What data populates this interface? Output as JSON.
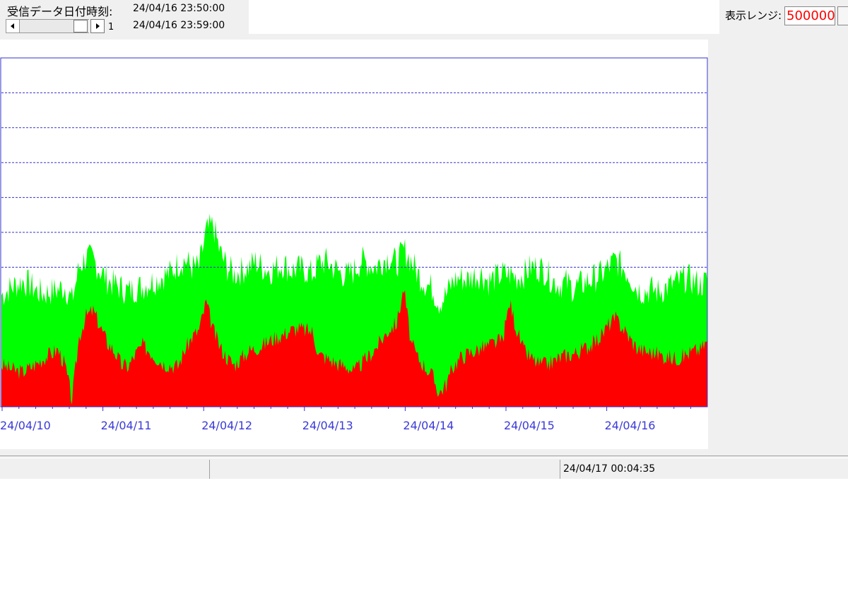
{
  "header": {
    "received_label": "受信データ日付時刻:",
    "time_start": "24/04/16 23:50:00",
    "time_end": "24/04/16 23:59:00",
    "scroll_page": "1"
  },
  "range": {
    "label": "表示レンジ:",
    "value": "500000"
  },
  "status": {
    "timestamp": "24/04/17 00:04:35"
  },
  "colors": {
    "series_total": "#00ff00",
    "series_base": "#ff0000",
    "axis": "#3333cc",
    "grid": "#3333cc",
    "tick_label": "#3a3ad8",
    "range_text": "#ff0000"
  },
  "chart_data": {
    "type": "area",
    "stacked": true,
    "xlabel": "",
    "ylabel": "",
    "x_tick_labels": [
      "24/04/10",
      "24/04/11",
      "24/04/12",
      "24/04/13",
      "24/04/14",
      "24/04/15",
      "24/04/16"
    ],
    "x_start": "24/04/10 00:00",
    "x_end": "24/04/16 23:59",
    "ylim": [
      0,
      500000
    ],
    "gridlines_y": [
      200000,
      250000,
      300000,
      350000,
      400000,
      450000
    ],
    "grid": true,
    "legend": "none",
    "series": [
      {
        "role": "red",
        "values": [
          60000,
          56000,
          52000,
          50000,
          56000,
          62000,
          70000,
          76000,
          82000,
          60000,
          10000,
          100000,
          130000,
          138000,
          115000,
          92000,
          80000,
          60000,
          58000,
          76000,
          88000,
          80000,
          70000,
          62000,
          60000,
          58000,
          82000,
          100000,
          110000,
          150000,
          110000,
          85000,
          70000,
          60000,
          70000,
          80000,
          84000,
          88000,
          95000,
          100000,
          104000,
          110000,
          112000,
          110000,
          108000,
          75000,
          70000,
          65000,
          60000,
          58000,
          50000,
          62000,
          72000,
          84000,
          98000,
          112000,
          120000,
          170000,
          92000,
          70000,
          58000,
          45000,
          20000,
          32000,
          58000,
          70000,
          76000,
          80000,
          84000,
          88000,
          92000,
          96000,
          150000,
          110000,
          80000,
          70000,
          62000,
          60000,
          64000,
          70000,
          74000,
          76000,
          80000,
          86000,
          92000,
          102000,
          118000,
          126000,
          114000,
          98000,
          85000,
          80000,
          78000,
          76000,
          72000,
          70000,
          70000,
          75000,
          80000,
          82000,
          95000
        ]
      },
      {
        "role": "green",
        "values": [
          160000,
          168000,
          175000,
          180000,
          175000,
          166000,
          162000,
          165000,
          168000,
          172000,
          152000,
          200000,
          215000,
          210000,
          195000,
          182000,
          175000,
          170000,
          165000,
          170000,
          172000,
          178000,
          182000,
          188000,
          192000,
          205000,
          210000,
          200000,
          200000,
          250000,
          260000,
          220000,
          200000,
          190000,
          195000,
          200000,
          208000,
          200000,
          195000,
          200000,
          205000,
          195000,
          198000,
          196000,
          190000,
          206000,
          208000,
          200000,
          192000,
          188000,
          196000,
          210000,
          205000,
          200000,
          210000,
          215000,
          205000,
          225000,
          210000,
          190000,
          178000,
          170000,
          150000,
          160000,
          180000,
          185000,
          182000,
          188000,
          190000,
          180000,
          185000,
          190000,
          190000,
          185000,
          190000,
          200000,
          200000,
          195000,
          182000,
          175000,
          178000,
          170000,
          175000,
          180000,
          185000,
          190000,
          200000,
          210000,
          200000,
          188000,
          170000,
          165000,
          168000,
          165000,
          170000,
          175000,
          180000,
          185000,
          180000,
          175000,
          180000
        ]
      }
    ]
  }
}
